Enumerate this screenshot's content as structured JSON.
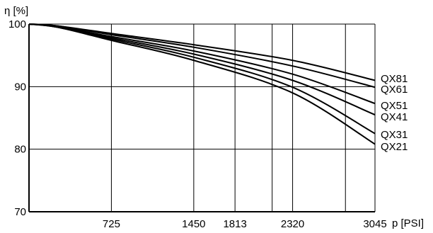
{
  "chart_data": {
    "type": "line",
    "ylabel": "η [%]",
    "xlabel": "p [PSI]",
    "xlim": [
      0,
      3045
    ],
    "ylim": [
      70,
      100
    ],
    "x_ticks": [
      725,
      1450,
      1813,
      2320,
      3045
    ],
    "x_tick_labels": [
      "725",
      "1450",
      "1813",
      "2320",
      "3045"
    ],
    "y_ticks": [
      70,
      80,
      90,
      100
    ],
    "y_tick_labels": [
      "70",
      "80",
      "90",
      "100"
    ],
    "grid": true,
    "legend": "right-end labels",
    "series": [
      {
        "name": "QX81",
        "x": [
          0,
          250,
          725,
          1450,
          2320,
          3045
        ],
        "values": [
          100,
          99.7,
          98.5,
          96.7,
          94.2,
          91.0
        ]
      },
      {
        "name": "QX61",
        "x": [
          0,
          250,
          725,
          1450,
          2320,
          3045
        ],
        "values": [
          100,
          99.7,
          98.3,
          96.3,
          93.3,
          89.9
        ]
      },
      {
        "name": "QX51",
        "x": [
          0,
          250,
          725,
          1450,
          2320,
          3045
        ],
        "values": [
          100,
          99.6,
          98.0,
          95.7,
          92.0,
          87.3
        ]
      },
      {
        "name": "QX41",
        "x": [
          0,
          250,
          725,
          1450,
          2320,
          3045
        ],
        "values": [
          100,
          99.6,
          97.8,
          95.2,
          91.0,
          85.5
        ]
      },
      {
        "name": "QX31",
        "x": [
          0,
          250,
          725,
          1450,
          2320,
          3045
        ],
        "values": [
          100,
          99.5,
          97.6,
          94.7,
          89.9,
          82.5
        ]
      },
      {
        "name": "QX21",
        "x": [
          0,
          250,
          725,
          1450,
          2320,
          3045
        ],
        "values": [
          100,
          99.5,
          97.4,
          94.2,
          89.0,
          80.8
        ]
      }
    ]
  },
  "colors": {
    "line": "#000000",
    "background": "#ffffff"
  }
}
